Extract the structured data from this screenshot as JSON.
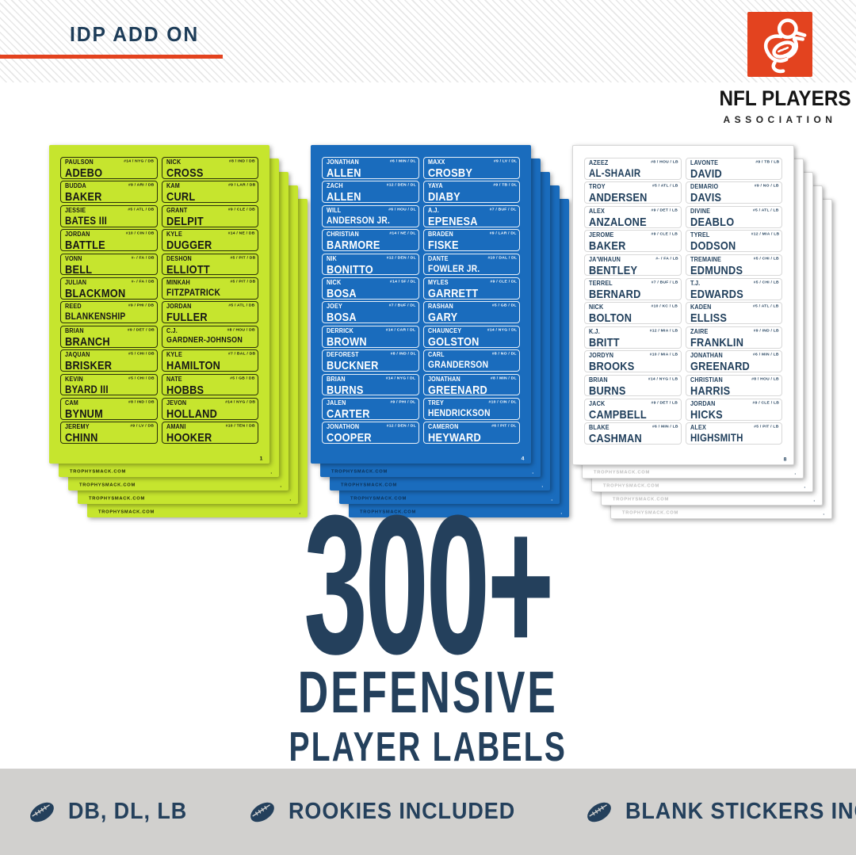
{
  "header": {
    "title": "IDP ADD ON"
  },
  "colors": {
    "navy": "#24405c",
    "header_navy": "#1d3c58",
    "red": "#e3431f",
    "bar_bg": "#d1d0ce",
    "sheet_yellow": "#c6e52e",
    "sheet_blue": "#1a6cbd",
    "sheet_white": "#ffffff"
  },
  "logo": {
    "line1": "NFL PLAYERS",
    "line2": "ASSOCIATION"
  },
  "headline": {
    "count": "300+",
    "line1": "DEFENSIVE",
    "line2": "PLAYER LABELS"
  },
  "features": [
    {
      "icon": "football-icon",
      "label": "DB, DL, LB"
    },
    {
      "icon": "football-icon",
      "label": "ROOKIES INCLUDED"
    },
    {
      "icon": "football-icon",
      "label": "BLANK STICKERS INCLUDED"
    }
  ],
  "sheets": [
    {
      "id": "db",
      "position": "DB",
      "page": "1",
      "watermark": "TROPHYSMACK.COM",
      "bg": "#c6e52e",
      "text_color": "#161616",
      "border_color": "rgba(0,0,0,0.8)",
      "watermark_color": "rgba(0,0,0,0.85)",
      "sheet_border": "",
      "players": [
        {
          "first": "PAULSON",
          "last": "ADEBO",
          "num": "#14",
          "team": "NYG"
        },
        {
          "first": "BUDDA",
          "last": "BAKER",
          "num": "#9",
          "team": "ARI"
        },
        {
          "first": "JESSIE",
          "last": "BATES III",
          "num": "#5",
          "team": "ATL"
        },
        {
          "first": "JORDAN",
          "last": "BATTLE",
          "num": "#10",
          "team": "CIN"
        },
        {
          "first": "VONN",
          "last": "BELL",
          "num": "#-",
          "team": "FA"
        },
        {
          "first": "JULIAN",
          "last": "BLACKMON",
          "num": "#-",
          "team": "FA"
        },
        {
          "first": "REED",
          "last": "BLANKENSHIP",
          "num": "#9",
          "team": "PHI"
        },
        {
          "first": "BRIAN",
          "last": "BRANCH",
          "num": "#9",
          "team": "DET"
        },
        {
          "first": "JAQUAN",
          "last": "BRISKER",
          "num": "#5",
          "team": "CHI"
        },
        {
          "first": "KEVIN",
          "last": "BYARD III",
          "num": "#5",
          "team": "CHI"
        },
        {
          "first": "CAM",
          "last": "BYNUM",
          "num": "#8",
          "team": "IND"
        },
        {
          "first": "JEREMY",
          "last": "CHINN",
          "num": "#9",
          "team": "LV"
        },
        {
          "first": "NICK",
          "last": "CROSS",
          "num": "#8",
          "team": "IND"
        },
        {
          "first": "KAM",
          "last": "CURL",
          "num": "#9",
          "team": "LAR"
        },
        {
          "first": "GRANT",
          "last": "DELPIT",
          "num": "#9",
          "team": "CLE"
        },
        {
          "first": "KYLE",
          "last": "DUGGER",
          "num": "#14",
          "team": "NE"
        },
        {
          "first": "DESHON",
          "last": "ELLIOTT",
          "num": "#5",
          "team": "PIT"
        },
        {
          "first": "MINKAH",
          "last": "FITZPATRICK",
          "num": "#5",
          "team": "PIT"
        },
        {
          "first": "JORDAN",
          "last": "FULLER",
          "num": "#5",
          "team": "ATL"
        },
        {
          "first": "C.J.",
          "last": "GARDNER-JOHNSON",
          "num": "#8",
          "team": "HOU"
        },
        {
          "first": "KYLE",
          "last": "HAMILTON",
          "num": "#7",
          "team": "BAL"
        },
        {
          "first": "NATE",
          "last": "HOBBS",
          "num": "#5",
          "team": "GB"
        },
        {
          "first": "JEVON",
          "last": "HOLLAND",
          "num": "#14",
          "team": "NYG"
        },
        {
          "first": "AMANI",
          "last": "HOOKER",
          "num": "#10",
          "team": "TEN"
        }
      ]
    },
    {
      "id": "dl",
      "position": "DL",
      "page": "4",
      "watermark": "TROPHYSMACK.COM",
      "bg": "#1a6cbd",
      "text_color": "#ffffff",
      "border_color": "rgba(255,255,255,0.9)",
      "watermark_color": "rgba(10,40,70,0.9)",
      "sheet_border": "",
      "players": [
        {
          "first": "JONATHAN",
          "last": "ALLEN",
          "num": "#6",
          "team": "MIN"
        },
        {
          "first": "ZACH",
          "last": "ALLEN",
          "num": "#12",
          "team": "DEN"
        },
        {
          "first": "WILL",
          "last": "ANDERSON JR.",
          "num": "#6",
          "team": "HOU"
        },
        {
          "first": "CHRISTIAN",
          "last": "BARMORE",
          "num": "#14",
          "team": "NE"
        },
        {
          "first": "NIK",
          "last": "BONITTO",
          "num": "#12",
          "team": "DEN"
        },
        {
          "first": "NICK",
          "last": "BOSA",
          "num": "#14",
          "team": "SF"
        },
        {
          "first": "JOEY",
          "last": "BOSA",
          "num": "#7",
          "team": "BUF"
        },
        {
          "first": "DERRICK",
          "last": "BROWN",
          "num": "#14",
          "team": "CAR"
        },
        {
          "first": "DEFOREST",
          "last": "BUCKNER",
          "num": "#8",
          "team": "IND"
        },
        {
          "first": "BRIAN",
          "last": "BURNS",
          "num": "#14",
          "team": "NYG"
        },
        {
          "first": "JALEN",
          "last": "CARTER",
          "num": "#9",
          "team": "PHI"
        },
        {
          "first": "JONATHON",
          "last": "COOPER",
          "num": "#12",
          "team": "DEN"
        },
        {
          "first": "MAXX",
          "last": "CROSBY",
          "num": "#9",
          "team": "LV"
        },
        {
          "first": "YAYA",
          "last": "DIABY",
          "num": "#9",
          "team": "TB"
        },
        {
          "first": "A.J.",
          "last": "EPENESA",
          "num": "#7",
          "team": "BUF"
        },
        {
          "first": "BRADEN",
          "last": "FISKE",
          "num": "#9",
          "team": "LAR"
        },
        {
          "first": "DANTE",
          "last": "FOWLER JR.",
          "num": "#10",
          "team": "DAL"
        },
        {
          "first": "MYLES",
          "last": "GARRETT",
          "num": "#9",
          "team": "CLE"
        },
        {
          "first": "RASHAN",
          "last": "GARY",
          "num": "#5",
          "team": "GB"
        },
        {
          "first": "CHAUNCEY",
          "last": "GOLSTON",
          "num": "#14",
          "team": "NYG"
        },
        {
          "first": "CARL",
          "last": "GRANDERSON",
          "num": "#8",
          "team": "NO"
        },
        {
          "first": "JONATHAN",
          "last": "GREENARD",
          "num": "#8",
          "team": "MIN"
        },
        {
          "first": "TREY",
          "last": "HENDRICKSON",
          "num": "#10",
          "team": "CIN"
        },
        {
          "first": "CAMERON",
          "last": "HEYWARD",
          "num": "#6",
          "team": "PIT"
        }
      ]
    },
    {
      "id": "lb",
      "position": "LB",
      "page": "8",
      "watermark": "TROPHYSMACK.COM",
      "bg": "#ffffff",
      "text_color": "#1e3d5a",
      "border_color": "#d8d8d8",
      "watermark_color": "#bfbfbf",
      "sheet_border": "#d6d6d6",
      "players": [
        {
          "first": "AZEEZ",
          "last": "AL-SHAAIR",
          "num": "#8",
          "team": "HOU"
        },
        {
          "first": "TROY",
          "last": "ANDERSEN",
          "num": "#5",
          "team": "ATL"
        },
        {
          "first": "ALEX",
          "last": "ANZALONE",
          "num": "#9",
          "team": "DET"
        },
        {
          "first": "JEROME",
          "last": "BAKER",
          "num": "#9",
          "team": "CLE"
        },
        {
          "first": "JA'WHAUN",
          "last": "BENTLEY",
          "num": "#-",
          "team": "FA"
        },
        {
          "first": "TERREL",
          "last": "BERNARD",
          "num": "#7",
          "team": "BUF"
        },
        {
          "first": "NICK",
          "last": "BOLTON",
          "num": "#10",
          "team": "KC"
        },
        {
          "first": "K.J.",
          "last": "BRITT",
          "num": "#12",
          "team": "MIA"
        },
        {
          "first": "JORDYN",
          "last": "BROOKS",
          "num": "#10",
          "team": "MIA"
        },
        {
          "first": "BRIAN",
          "last": "BURNS",
          "num": "#14",
          "team": "NYG"
        },
        {
          "first": "JACK",
          "last": "CAMPBELL",
          "num": "#9",
          "team": "DET"
        },
        {
          "first": "BLAKE",
          "last": "CASHMAN",
          "num": "#6",
          "team": "MIN"
        },
        {
          "first": "LAVONTE",
          "last": "DAVID",
          "num": "#9",
          "team": "TB"
        },
        {
          "first": "DEMARIO",
          "last": "DAVIS",
          "num": "#9",
          "team": "NO"
        },
        {
          "first": "DIVINE",
          "last": "DEABLO",
          "num": "#5",
          "team": "ATL"
        },
        {
          "first": "TYREL",
          "last": "DODSON",
          "num": "#12",
          "team": "MIA"
        },
        {
          "first": "TREMAINE",
          "last": "EDMUNDS",
          "num": "#5",
          "team": "CHI"
        },
        {
          "first": "T.J.",
          "last": "EDWARDS",
          "num": "#5",
          "team": "CHI"
        },
        {
          "first": "KADEN",
          "last": "ELLISS",
          "num": "#5",
          "team": "ATL"
        },
        {
          "first": "ZAIRE",
          "last": "FRANKLIN",
          "num": "#9",
          "team": "IND"
        },
        {
          "first": "JONATHAN",
          "last": "GREENARD",
          "num": "#6",
          "team": "MIN"
        },
        {
          "first": "CHRISTIAN",
          "last": "HARRIS",
          "num": "#8",
          "team": "HOU"
        },
        {
          "first": "JORDAN",
          "last": "HICKS",
          "num": "#9",
          "team": "CLE"
        },
        {
          "first": "ALEX",
          "last": "HIGHSMITH",
          "num": "#5",
          "team": "PIT"
        }
      ]
    }
  ]
}
